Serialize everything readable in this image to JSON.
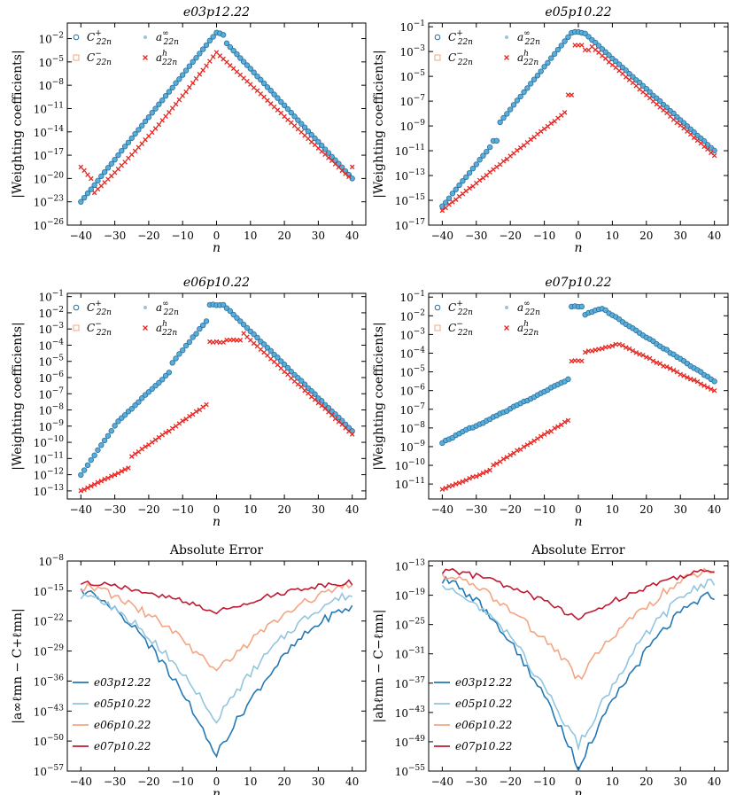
{
  "figure": {
    "colors": {
      "C_plus": "#5aaedb",
      "C_minus": "#f4a582",
      "a_inf": "#92c5de",
      "a_h": "#e8241f",
      "err_e03": "#2379b5",
      "err_e05": "#92c5de",
      "err_e06": "#f4a582",
      "err_e07": "#c01932"
    }
  },
  "chart_data": [
    {
      "type": "scatter",
      "title": "e03p12.22",
      "xlabel": "n",
      "ylabel": "|Weighting coefficients|",
      "xlim": [
        -44,
        44
      ],
      "ylim_log10": [
        -26,
        0
      ],
      "yscale": "log",
      "yticks": [
        "10^-2",
        "10^-5",
        "10^-8",
        "10^-11",
        "10^-14",
        "10^-17",
        "10^-20",
        "10^-23",
        "10^-26"
      ],
      "xticks": [
        "−40",
        "−30",
        "−20",
        "−10",
        "0",
        "10",
        "20",
        "30",
        "40"
      ],
      "legend": {
        "position": "top-left",
        "entries": [
          "C22n+",
          "C22n−",
          "a22n∞",
          "a22nh"
        ]
      },
      "peak_n": 0,
      "C_left": [
        -23.0,
        -1.2
      ],
      "C_right": [
        -1.2,
        -20.0
      ],
      "a_left": [
        -23.5,
        -3.8
      ],
      "a_right": [
        -3.8,
        -20.2
      ],
      "notes": "a_h outliers near n=-40 to -37 around 1e-18 to 1e-20"
    },
    {
      "type": "scatter",
      "title": "e05p10.22",
      "xlabel": "n",
      "ylabel": "|Weighting coefficients|",
      "xlim": [
        -44,
        44
      ],
      "ylim_log10": [
        -17,
        -0.7
      ],
      "yscale": "log",
      "yticks": [
        "10^-1",
        "10^-3",
        "10^-5",
        "10^-7",
        "10^-9",
        "10^-11",
        "10^-13",
        "10^-15",
        "10^-17"
      ],
      "xticks": [
        "−40",
        "−30",
        "−20",
        "−10",
        "0",
        "10",
        "20",
        "30",
        "40"
      ],
      "legend": {
        "position": "top-left",
        "entries": [
          "C22n+",
          "C22n−",
          "a22n∞",
          "a22nh"
        ]
      },
      "C_peak": [
        1,
        -1.3
      ],
      "a_peak": [
        4,
        -2.6
      ],
      "C_end": -11.0,
      "a_end": -11.4
    },
    {
      "type": "scatter",
      "title": "e06p10.22",
      "xlabel": "n",
      "ylabel": "|Weighting coefficients|",
      "xlim": [
        -44,
        44
      ],
      "ylim_log10": [
        -13.5,
        -0.8
      ],
      "yscale": "log",
      "yticks": [
        "10^-1",
        "10^-2",
        "10^-3",
        "10^-4",
        "10^-5",
        "10^-6",
        "10^-7",
        "10^-8",
        "10^-9",
        "10^-10",
        "10^-11",
        "10^-12",
        "10^-13"
      ],
      "xticks": [
        "−40",
        "−30",
        "−20",
        "−10",
        "0",
        "10",
        "20",
        "30",
        "40"
      ],
      "legend": {
        "position": "top-left",
        "entries": [
          "C22n+",
          "C22n−",
          "a22n∞",
          "a22nh"
        ]
      },
      "C_peak": [
        0,
        -1.5
      ],
      "a_peak": [
        8,
        -3.3
      ],
      "C_end": -9.3,
      "a_end": -9.5
    },
    {
      "type": "scatter",
      "title": "e07p10.22",
      "xlabel": "n",
      "ylabel": "|Weighting coefficients|",
      "xlim": [
        -44,
        44
      ],
      "ylim_log10": [
        -11.8,
        -0.8
      ],
      "yscale": "log",
      "yticks": [
        "10^-1",
        "10^-2",
        "10^-3",
        "10^-4",
        "10^-5",
        "10^-6",
        "10^-7",
        "10^-8",
        "10^-9",
        "10^-10",
        "10^-11"
      ],
      "xticks": [
        "−40",
        "−30",
        "−20",
        "−10",
        "0",
        "10",
        "20",
        "30",
        "40"
      ],
      "legend": {
        "position": "top-left",
        "entries": [
          "C22n+",
          "C22n−",
          "a22n∞",
          "a22nh"
        ]
      },
      "C_peak": [
        7,
        -1.6
      ],
      "a_peak": [
        12,
        -3.5
      ],
      "C_end": -5.5,
      "a_end": -6.0
    },
    {
      "type": "line",
      "title": "Absolute Error",
      "xlabel": "n",
      "ylabel": "|a∞ℓmn − C+ℓmn|",
      "xlim": [
        -44,
        44
      ],
      "ylim_log10": [
        -57,
        -8
      ],
      "yscale": "log",
      "yticks": [
        "10^-8",
        "10^-15",
        "10^-22",
        "10^-29",
        "10^-36",
        "10^-43",
        "10^-50",
        "10^-57"
      ],
      "xticks": [
        "−40",
        "−30",
        "−20",
        "−10",
        "0",
        "10",
        "20",
        "30",
        "40"
      ],
      "legend": {
        "position": "bottom-left",
        "entries": [
          "e03p12.22",
          "e05p10.22",
          "e06p10.22",
          "e07p10.22"
        ]
      },
      "series": [
        {
          "name": "e03p12.22",
          "left": -15,
          "bottom": -53,
          "right": -19
        },
        {
          "name": "e05p10.22",
          "left": -16,
          "bottom": -45,
          "right": -16
        },
        {
          "name": "e06p10.22",
          "left": -14,
          "bottom": -34,
          "right": -14
        },
        {
          "name": "e07p10.22",
          "left": -13,
          "bottom": -20,
          "right": -13
        }
      ]
    },
    {
      "type": "line",
      "title": "Absolute Error",
      "xlabel": "n",
      "ylabel": "|ahℓmn − C−ℓmn|",
      "xlim": [
        -44,
        44
      ],
      "ylim_log10": [
        -55,
        -12
      ],
      "yscale": "log",
      "yticks": [
        "10^-13",
        "10^-19",
        "10^-25",
        "10^-31",
        "10^-37",
        "10^-43",
        "10^-49",
        "10^-55"
      ],
      "xticks": [
        "−40",
        "−30",
        "−20",
        "−10",
        "0",
        "10",
        "20",
        "30",
        "40"
      ],
      "legend": {
        "position": "bottom-left",
        "entries": [
          "e03p12.22",
          "e05p10.22",
          "e06p10.22",
          "e07p10.22"
        ]
      },
      "series": [
        {
          "name": "e03p12.22",
          "left": -16,
          "bottom": -54,
          "right": -19
        },
        {
          "name": "e05p10.22",
          "left": -17,
          "bottom": -50,
          "right": -16
        },
        {
          "name": "e06p10.22",
          "left": -15,
          "bottom": -36,
          "right": -14
        },
        {
          "name": "e07p10.22",
          "left": -14,
          "bottom": -24,
          "right": -14
        }
      ]
    }
  ]
}
